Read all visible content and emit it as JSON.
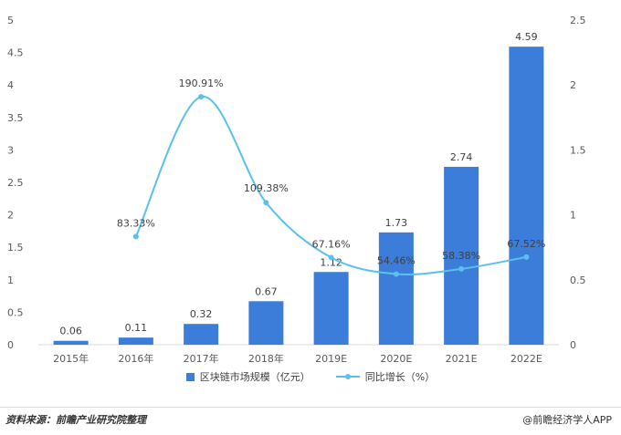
{
  "chart_data": {
    "type": "bar",
    "categories": [
      "2015年",
      "2016年",
      "2017年",
      "2018年",
      "2019E",
      "2020E",
      "2021E",
      "2022E"
    ],
    "series": [
      {
        "name": "区块链市场规模（亿元）",
        "type": "bar",
        "axis": "left",
        "color": "#3b7dd8",
        "values": [
          0.06,
          0.11,
          0.32,
          0.67,
          1.12,
          1.73,
          2.74,
          4.59
        ],
        "labels": [
          "0.06",
          "0.11",
          "0.32",
          "0.67",
          "1.12",
          "1.73",
          "2.74",
          "4.59"
        ]
      },
      {
        "name": "同比增长（%）",
        "type": "line",
        "axis": "right",
        "color": "#5bc0eb",
        "values": [
          null,
          0.8333,
          1.9091,
          1.0938,
          0.6716,
          0.5446,
          0.5838,
          0.6752
        ],
        "labels": [
          "",
          "83.33%",
          "190.91%",
          "109.38%",
          "67.16%",
          "54.46%",
          "58.38%",
          "67.52%"
        ]
      }
    ],
    "y_left": {
      "ylim": [
        0,
        5
      ],
      "ticks": [
        "0",
        "0.5",
        "1",
        "1.5",
        "2",
        "2.5",
        "3",
        "3.5",
        "4",
        "4.5",
        "5"
      ]
    },
    "y_right": {
      "ylim": [
        0,
        2.5
      ],
      "ticks": [
        "0",
        "0.5",
        "1",
        "1.5",
        "2",
        "2.5"
      ]
    },
    "grid": false,
    "legend": "bottom"
  },
  "footer": {
    "source": "资料来源：前瞻产业研究院整理",
    "brand": "@前瞻经济学人APP"
  }
}
